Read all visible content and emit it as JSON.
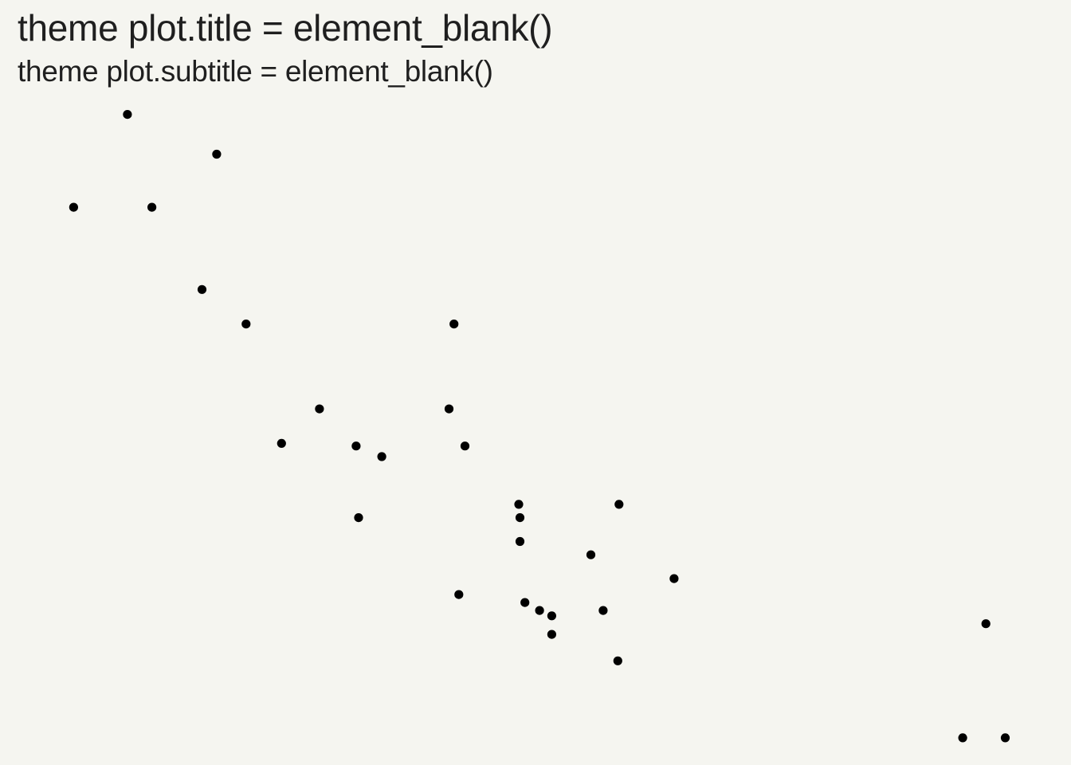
{
  "chart_data": {
    "type": "scatter",
    "title": "theme plot.title = element_blank()",
    "subtitle": "theme plot.subtitle = element_blank()",
    "xlabel": "",
    "ylabel": "",
    "axes_visible": false,
    "grid": false,
    "legend": "none",
    "point_color": "#000000",
    "xlim": [
      1.4,
      5.6
    ],
    "ylim": [
      10.0,
      34.5
    ],
    "points": [
      {
        "x": 1.615,
        "y": 30.4
      },
      {
        "x": 1.835,
        "y": 33.9
      },
      {
        "x": 1.935,
        "y": 30.4
      },
      {
        "x": 2.14,
        "y": 27.3
      },
      {
        "x": 2.2,
        "y": 32.4
      },
      {
        "x": 2.32,
        "y": 26.0
      },
      {
        "x": 2.465,
        "y": 21.5
      },
      {
        "x": 2.62,
        "y": 22.8
      },
      {
        "x": 2.77,
        "y": 21.4
      },
      {
        "x": 2.78,
        "y": 18.7
      },
      {
        "x": 2.875,
        "y": 21.0
      },
      {
        "x": 3.15,
        "y": 22.8
      },
      {
        "x": 3.17,
        "y": 26.0
      },
      {
        "x": 3.19,
        "y": 15.8
      },
      {
        "x": 3.215,
        "y": 21.4
      },
      {
        "x": 3.435,
        "y": 19.2
      },
      {
        "x": 3.44,
        "y": 18.7
      },
      {
        "x": 3.44,
        "y": 17.8
      },
      {
        "x": 3.46,
        "y": 15.5
      },
      {
        "x": 3.52,
        "y": 15.2
      },
      {
        "x": 3.57,
        "y": 14.3
      },
      {
        "x": 3.57,
        "y": 15.0
      },
      {
        "x": 3.73,
        "y": 17.3
      },
      {
        "x": 3.78,
        "y": 15.2
      },
      {
        "x": 3.84,
        "y": 13.3
      },
      {
        "x": 3.845,
        "y": 19.2
      },
      {
        "x": 4.07,
        "y": 16.4
      },
      {
        "x": 5.25,
        "y": 10.4
      },
      {
        "x": 5.345,
        "y": 14.7
      },
      {
        "x": 5.424,
        "y": 10.4
      }
    ]
  }
}
